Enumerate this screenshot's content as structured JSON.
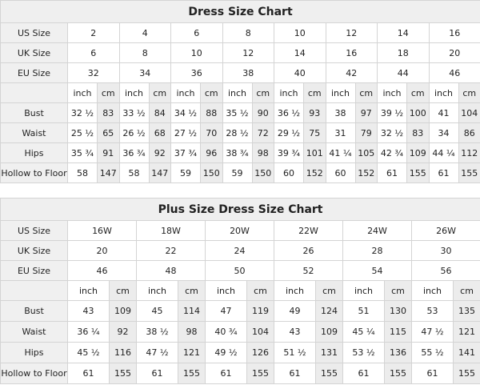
{
  "charts": [
    {
      "title": "Dress Size Chart",
      "us_label": "US Size",
      "uk_label": "UK Size",
      "eu_label": "EU Size",
      "us": [
        "2",
        "4",
        "6",
        "8",
        "10",
        "12",
        "14",
        "16"
      ],
      "uk": [
        "6",
        "8",
        "10",
        "12",
        "14",
        "16",
        "18",
        "20"
      ],
      "eu": [
        "32",
        "34",
        "36",
        "38",
        "40",
        "42",
        "44",
        "46"
      ],
      "unit_inch": "inch",
      "unit_cm": "cm",
      "measurements": [
        {
          "label": "Bust",
          "values": [
            "32 ½",
            "83",
            "33 ½",
            "84",
            "34 ½",
            "88",
            "35 ½",
            "90",
            "36 ½",
            "93",
            "38",
            "97",
            "39 ½",
            "100",
            "41",
            "104"
          ]
        },
        {
          "label": "Waist",
          "values": [
            "25 ½",
            "65",
            "26 ½",
            "68",
            "27 ½",
            "70",
            "28 ½",
            "72",
            "29 ½",
            "75",
            "31",
            "79",
            "32 ½",
            "83",
            "34",
            "86"
          ]
        },
        {
          "label": "Hips",
          "values": [
            "35 ¾",
            "91",
            "36 ¾",
            "92",
            "37 ¾",
            "96",
            "38 ¾",
            "98",
            "39 ¾",
            "101",
            "41 ¼",
            "105",
            "42 ¾",
            "109",
            "44 ¼",
            "112"
          ]
        },
        {
          "label": "Hollow to Floor",
          "values": [
            "58",
            "147",
            "58",
            "147",
            "59",
            "150",
            "59",
            "150",
            "60",
            "152",
            "60",
            "152",
            "61",
            "155",
            "61",
            "155"
          ]
        }
      ]
    },
    {
      "title": "Plus Size Dress Size Chart",
      "us_label": "US Size",
      "uk_label": "UK Size",
      "eu_label": "EU Size",
      "us": [
        "16W",
        "18W",
        "20W",
        "22W",
        "24W",
        "26W"
      ],
      "uk": [
        "20",
        "22",
        "24",
        "26",
        "28",
        "30"
      ],
      "eu": [
        "46",
        "48",
        "50",
        "52",
        "54",
        "56"
      ],
      "unit_inch": "inch",
      "unit_cm": "cm",
      "measurements": [
        {
          "label": "Bust",
          "values": [
            "43",
            "109",
            "45",
            "114",
            "47",
            "119",
            "49",
            "124",
            "51",
            "130",
            "53",
            "135"
          ]
        },
        {
          "label": "Waist",
          "values": [
            "36 ¼",
            "92",
            "38 ½",
            "98",
            "40 ¾",
            "104",
            "43",
            "109",
            "45 ¼",
            "115",
            "47 ½",
            "121"
          ]
        },
        {
          "label": "Hips",
          "values": [
            "45 ½",
            "116",
            "47 ½",
            "121",
            "49 ½",
            "126",
            "51 ½",
            "131",
            "53 ½",
            "136",
            "55 ½",
            "141"
          ]
        },
        {
          "label": "Hollow to Floor",
          "values": [
            "61",
            "155",
            "61",
            "155",
            "61",
            "155",
            "61",
            "155",
            "61",
            "155",
            "61",
            "155"
          ]
        }
      ]
    }
  ]
}
